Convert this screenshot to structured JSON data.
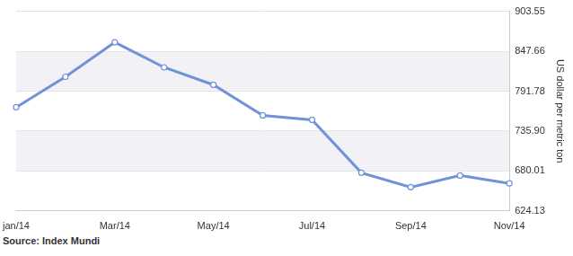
{
  "chart_data": {
    "type": "line",
    "source": "Source: Index Mundi",
    "y_label": "US dollar per metric ton",
    "categories": [
      "jan/14",
      null,
      "Mar/14",
      null,
      "May/14",
      null,
      "Jul/14",
      null,
      "Sep/14",
      null,
      "Nov/14"
    ],
    "values": [
      769.2,
      811.9,
      860.2,
      825.1,
      800.6,
      757.9,
      751.6,
      677.5,
      657.4,
      673.7,
      662.6
    ],
    "color": "#6f93d6",
    "marker": "circle",
    "ylim": [
      624.13,
      903.55
    ],
    "yticks": [
      624.13,
      680.01,
      {
        "value": 735.9,
        "label": "735.90"
      },
      791.78,
      847.66,
      903.55
    ],
    "grid": true
  }
}
